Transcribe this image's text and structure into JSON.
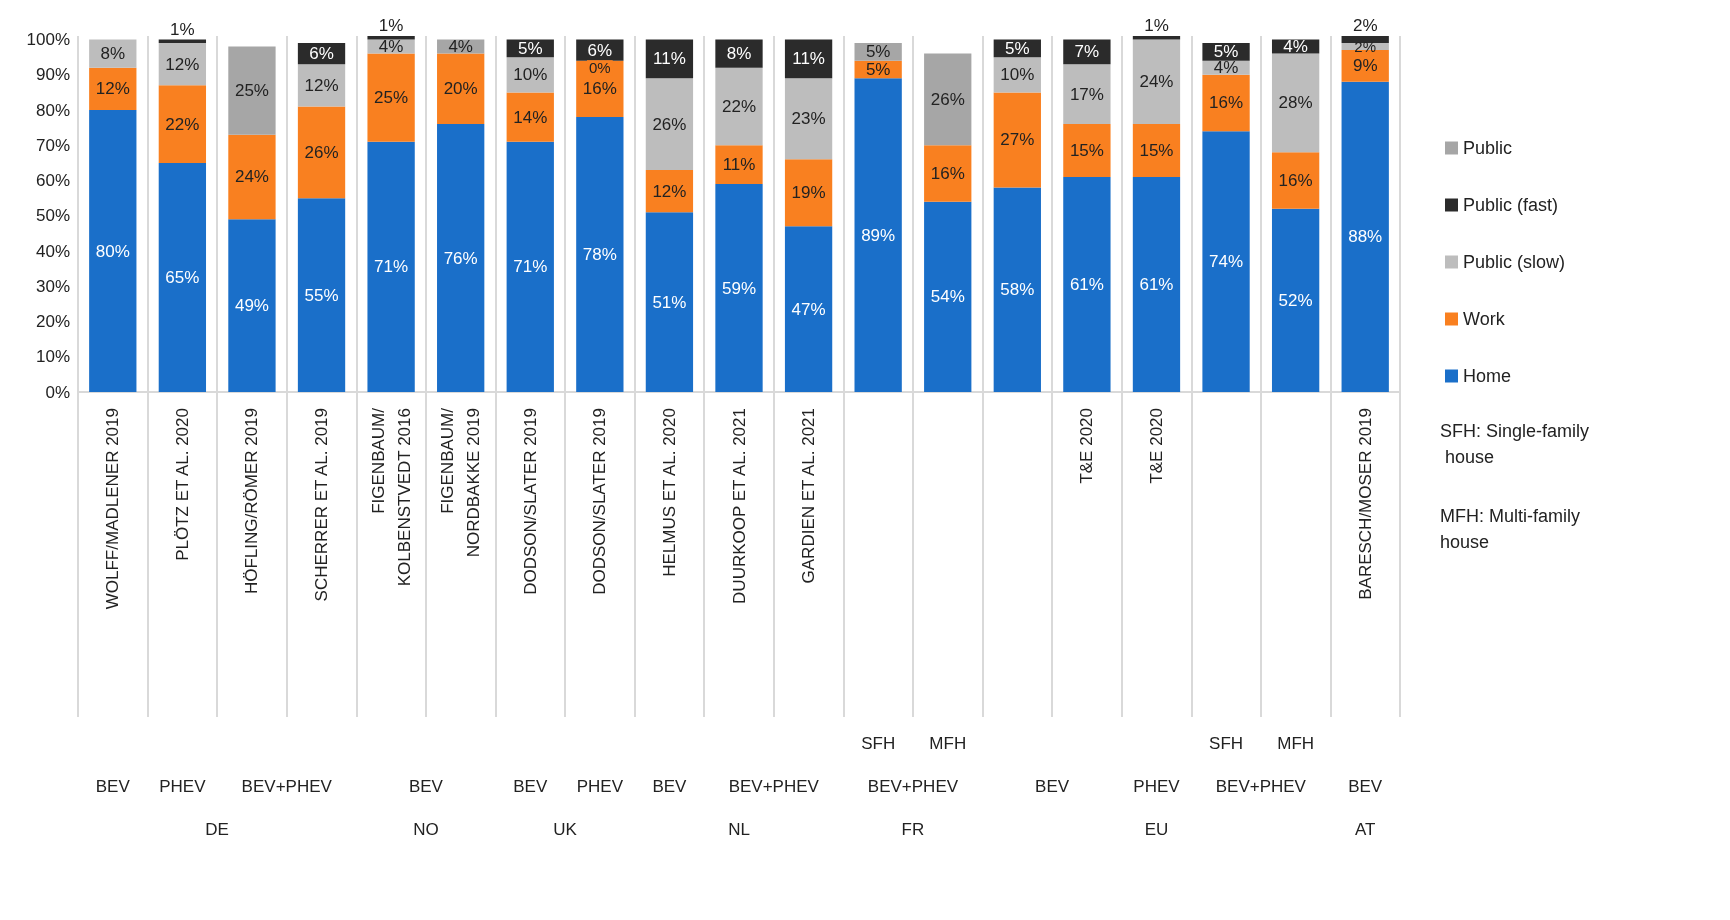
{
  "chart_data": {
    "type": "bar",
    "stacked": true,
    "categories": [
      "WOLFF/MADLENER 2019",
      "PLÖTZ ET AL. 2020",
      "HÖFLING/RÖMER 2019",
      "SCHERRER ET AL. 2019",
      "FIGENBAUM/\nKOLBENSTVEDT 2016",
      "FIGENBAUM/\nNORDBAKKE 2019",
      "DODSON/SLATER 2019",
      "DODSON/SLATER 2019",
      "HELMUS ET AL. 2020",
      "DUURKOOP ET AL. 2021",
      "GARDIEN ET AL. 2021",
      null,
      null,
      null,
      "T&E 2020",
      "T&E 2020",
      null,
      null,
      "BARESCH/MOSER 2019"
    ],
    "series": [
      {
        "name": "Home",
        "color": "#1a6fc9",
        "values": [
          80,
          65,
          49,
          55,
          71,
          76,
          71,
          78,
          51,
          59,
          47,
          89,
          54,
          58,
          61,
          61,
          74,
          52,
          88
        ],
        "value_labels": [
          "80%",
          "65%",
          "49%",
          "55%",
          "71%",
          "76%",
          "71%",
          "78%",
          "51%",
          "59%",
          "47%",
          "89%",
          "54%",
          "58%",
          "61%",
          "61%",
          "74%",
          "52%",
          "88%"
        ]
      },
      {
        "name": "Work",
        "color": "#f98020",
        "values": [
          12,
          22,
          24,
          26,
          25,
          20,
          14,
          16,
          12,
          11,
          19,
          5,
          16,
          27,
          15,
          15,
          16,
          16,
          9
        ],
        "value_labels": [
          "12%",
          "22%",
          "24%",
          "26%",
          "25%",
          "20%",
          "14%",
          "16%",
          "12%",
          "11%",
          "19%",
          "5%",
          "16%",
          "27%",
          "15%",
          "15%",
          "16%",
          "16%",
          "9%"
        ]
      },
      {
        "name": "Public (slow)",
        "color": "#bdbdbd",
        "values": [
          8,
          12,
          null,
          12,
          4,
          null,
          10,
          0,
          26,
          22,
          23,
          null,
          null,
          10,
          17,
          24,
          4,
          28,
          2
        ],
        "value_labels": [
          "8%",
          "12%",
          null,
          "12%",
          "4%",
          null,
          "10%",
          "0%",
          "26%",
          "22%",
          "23%",
          null,
          null,
          "10%",
          "17%",
          "24%",
          "4%",
          "28%",
          "2%"
        ]
      },
      {
        "name": "Public (fast)",
        "color": "#2b2b2b",
        "values": [
          null,
          1,
          null,
          6,
          1,
          null,
          5,
          6,
          11,
          8,
          11,
          null,
          null,
          5,
          7,
          1,
          5,
          4,
          2
        ],
        "value_labels": [
          null,
          "1%",
          null,
          "6%",
          "1%",
          null,
          "5%",
          "6%",
          "11%",
          "8%",
          "11%",
          null,
          null,
          "5%",
          "7%",
          "1%",
          "5%",
          "4%",
          "2%"
        ]
      },
      {
        "name": "Public",
        "color": "#a6a6a6",
        "values": [
          null,
          null,
          25,
          null,
          null,
          4,
          null,
          null,
          null,
          null,
          null,
          5,
          26,
          null,
          null,
          null,
          null,
          null,
          null
        ],
        "value_labels": [
          null,
          null,
          "25%",
          null,
          null,
          "4%",
          null,
          null,
          null,
          null,
          null,
          "5%",
          "26%",
          null,
          null,
          null,
          null,
          null,
          null
        ]
      }
    ],
    "ylim": [
      0,
      101
    ],
    "yticks": [
      {
        "value": 0,
        "label": "0%"
      },
      {
        "value": 10,
        "label": "10%"
      },
      {
        "value": 20,
        "label": "20%"
      },
      {
        "value": 30,
        "label": "30%"
      },
      {
        "value": 40,
        "label": "40%"
      },
      {
        "value": 50,
        "label": "50%"
      },
      {
        "value": 60,
        "label": "60%"
      },
      {
        "value": 70,
        "label": "70%"
      },
      {
        "value": 80,
        "label": "80%"
      },
      {
        "value": 90,
        "label": "90%"
      },
      {
        "value": 100,
        "label": "100%"
      }
    ],
    "grid": "x",
    "legend": "right",
    "annotations": [
      "SFH",
      "MFH",
      "SFH",
      "MFH",
      "BEV",
      "PHEV",
      "BEV+PHEV",
      "BEV",
      "BEV",
      "PHEV",
      "BEV",
      "BEV+PHEV",
      "BEV+PHEV",
      "BEV",
      "PHEV",
      "BEV+PHEV",
      "BEV",
      "DE",
      "NO",
      "UK",
      "NL",
      "FR",
      "EU",
      "AT",
      "SFH: Single-family house",
      "MFH: Multi-family house"
    ]
  }
}
